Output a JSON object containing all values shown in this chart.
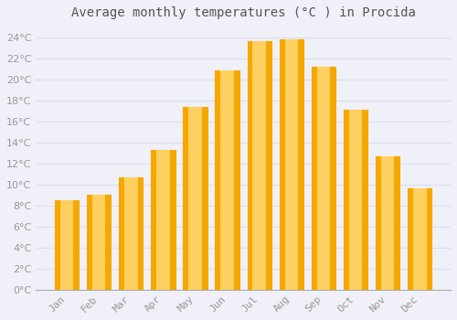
{
  "title": "Average monthly temperatures (°C ) in Procida",
  "months": [
    "Jan",
    "Feb",
    "Mar",
    "Apr",
    "May",
    "Jun",
    "Jul",
    "Aug",
    "Sep",
    "Oct",
    "Nov",
    "Dec"
  ],
  "values": [
    8.5,
    9.0,
    10.7,
    13.3,
    17.4,
    20.8,
    23.6,
    23.8,
    21.2,
    17.1,
    12.7,
    9.6
  ],
  "bar_color_center": "#FFD060",
  "bar_color_edge": "#F5A800",
  "background_color": "#F0F0F8",
  "grid_color": "#DDDDEE",
  "tick_label_color": "#999999",
  "title_color": "#555555",
  "ylim": [
    0,
    25
  ],
  "ytick_max": 24,
  "ytick_step": 2,
  "title_fontsize": 10,
  "tick_fontsize": 8
}
